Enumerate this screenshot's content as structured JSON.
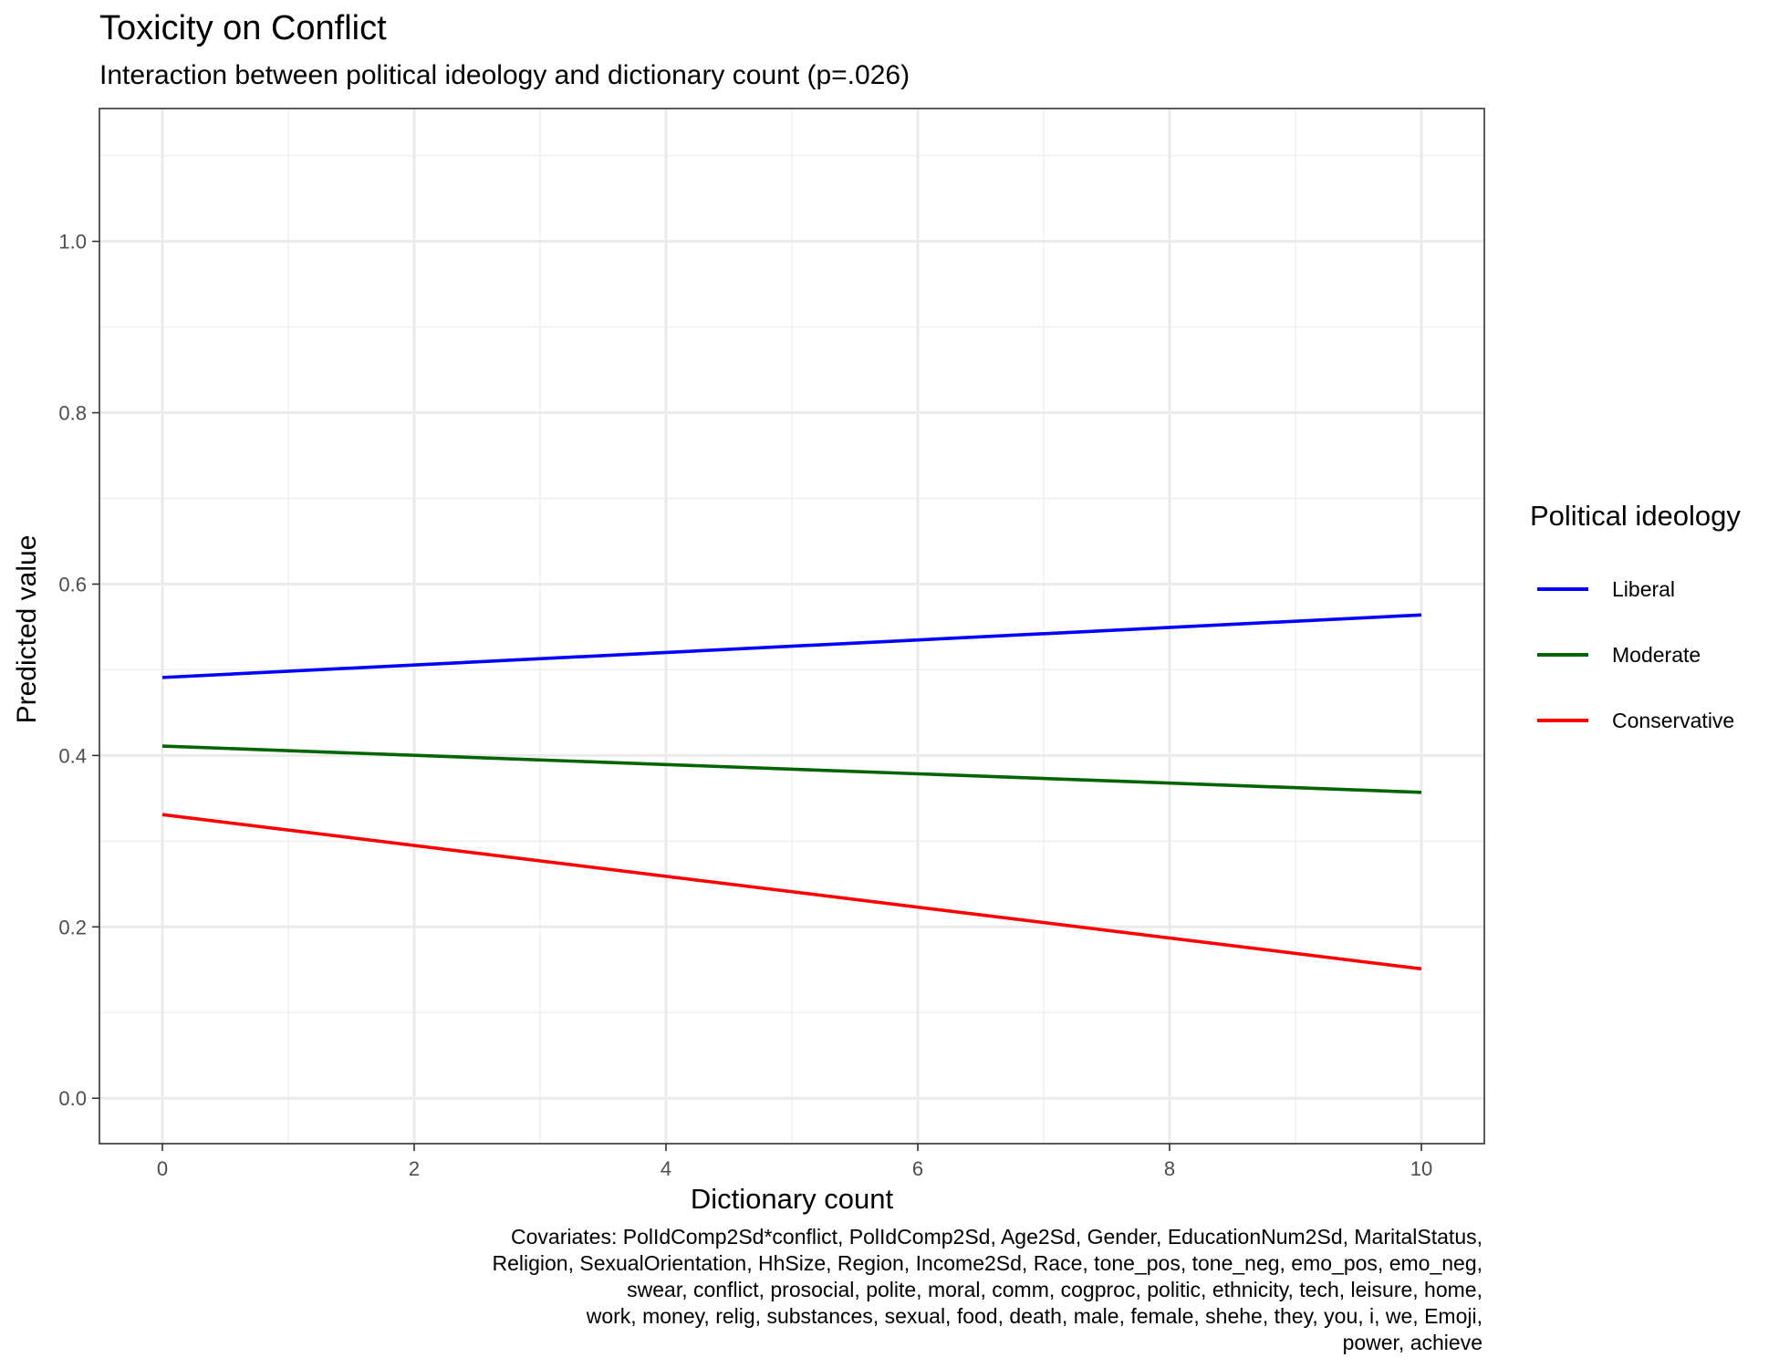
{
  "title": "Toxicity on Conflict",
  "subtitle": "Interaction between political ideology and dictionary count (p=.026)",
  "caption_lines": [
    "Covariates: PolIdComp2Sd*conflict, PolIdComp2Sd, Age2Sd, Gender, EducationNum2Sd, MaritalStatus,",
    "Religion, SexualOrientation, HhSize, Region, Income2Sd, Race, tone_pos, tone_neg, emo_pos, emo_neg,",
    "swear, conflict, prosocial, polite, moral, comm, cogproc, politic, ethnicity, tech, leisure, home,",
    "work, money, relig, substances, sexual, food, death, male, female, shehe, they, you, i, we, Emoji,",
    "power, achieve"
  ],
  "chart_data": {
    "type": "line",
    "title": "Toxicity on Conflict",
    "subtitle": "Interaction between political ideology and dictionary count (p=.026)",
    "xlabel": "Dictionary count",
    "ylabel": "Predicted value",
    "xlim": [
      -0.5,
      10.5
    ],
    "ylim": [
      -0.053,
      1.155
    ],
    "x_ticks": [
      0,
      2,
      4,
      6,
      8,
      10
    ],
    "x_tick_labels": [
      "0",
      "2",
      "4",
      "6",
      "8",
      "10"
    ],
    "y_ticks": [
      0.0,
      0.2,
      0.4,
      0.6,
      0.8,
      1.0
    ],
    "y_tick_labels": [
      "0.0",
      "0.2",
      "0.4",
      "0.6",
      "0.8",
      "1.0"
    ],
    "grid": true,
    "legend": {
      "title": "Political ideology",
      "position": "right"
    },
    "x": [
      0,
      10
    ],
    "series": [
      {
        "name": "Liberal",
        "color": "#0000ff",
        "values": [
          0.491,
          0.564
        ]
      },
      {
        "name": "Moderate",
        "color": "#006400",
        "values": [
          0.411,
          0.357
        ]
      },
      {
        "name": "Conservative",
        "color": "#ff0000",
        "values": [
          0.331,
          0.151
        ]
      }
    ]
  }
}
